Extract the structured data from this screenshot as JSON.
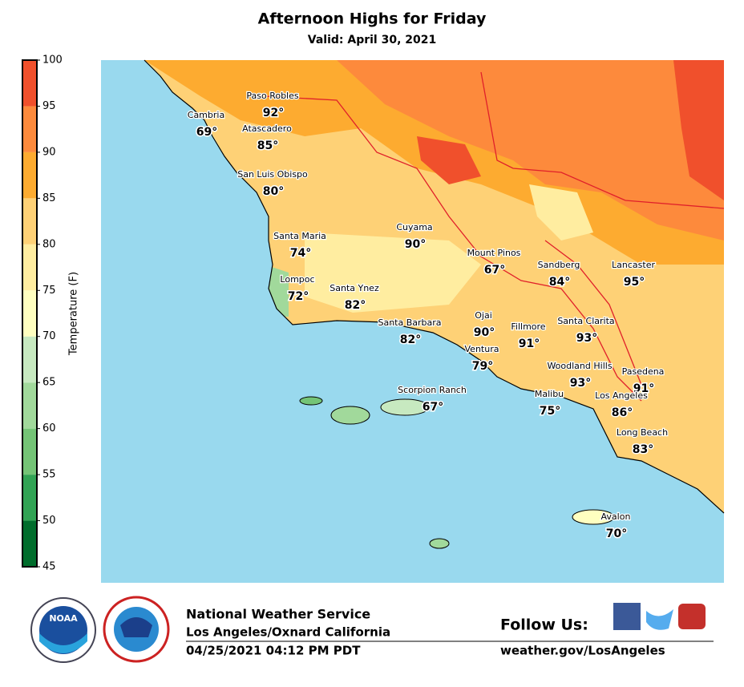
{
  "header": {
    "title": "Afternoon Highs for Friday",
    "subtitle": "Valid: April 30, 2021"
  },
  "colorbar": {
    "label": "Temperature (F)",
    "lim": [
      45,
      100
    ],
    "ticks": [
      45,
      50,
      55,
      60,
      65,
      70,
      75,
      80,
      85,
      90,
      95,
      100
    ],
    "colors": [
      "#006d2c",
      "#31a354",
      "#74c476",
      "#a1d99b",
      "#c7e9c0",
      "#ffffc0",
      "#ffeda0",
      "#fed176",
      "#fdab30",
      "#fd8a3c",
      "#f0502c"
    ]
  },
  "cities": [
    {
      "name": "Paso Robles",
      "temp": "92°"
    },
    {
      "name": "Cambria",
      "temp": "69°"
    },
    {
      "name": "Atascadero",
      "temp": "85°"
    },
    {
      "name": "San Luis Obispo",
      "temp": "80°"
    },
    {
      "name": "Santa Maria",
      "temp": "74°"
    },
    {
      "name": "Cuyama",
      "temp": "90°"
    },
    {
      "name": "Mount Pinos",
      "temp": "67°"
    },
    {
      "name": "Sandberg",
      "temp": "84°"
    },
    {
      "name": "Lancaster",
      "temp": "95°"
    },
    {
      "name": "Lompoc",
      "temp": "72°"
    },
    {
      "name": "Santa Ynez",
      "temp": "82°"
    },
    {
      "name": "Ojai",
      "temp": "90°"
    },
    {
      "name": "Fillmore",
      "temp": "91°"
    },
    {
      "name": "Santa Clarita",
      "temp": "93°"
    },
    {
      "name": "Santa Barbara",
      "temp": "82°"
    },
    {
      "name": "Ventura",
      "temp": "79°"
    },
    {
      "name": "Woodland Hills",
      "temp": "93°"
    },
    {
      "name": "Pasedena",
      "temp": "91°"
    },
    {
      "name": "Scorpion Ranch",
      "temp": "67°"
    },
    {
      "name": "Malibu",
      "temp": "75°"
    },
    {
      "name": "Los Angeles",
      "temp": "86°"
    },
    {
      "name": "Long Beach",
      "temp": "83°"
    },
    {
      "name": "Avalon",
      "temp": "70°"
    }
  ],
  "footer": {
    "noaa": "NOAA",
    "agency": "National Weather Service",
    "office": "Los Angeles/Oxnard California",
    "issued": "04/25/2021 04:12 PM PDT",
    "follow": "Follow Us:",
    "url": "weather.gov/LosAngeles"
  }
}
